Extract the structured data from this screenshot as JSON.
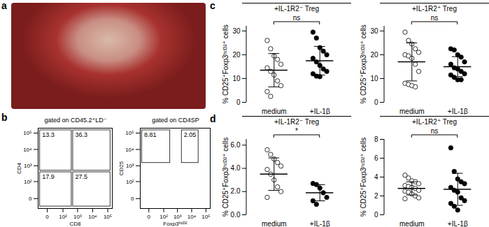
{
  "panel_labels": [
    "a",
    "b",
    "c",
    "d"
  ],
  "chart_data": [
    {
      "type": "flow",
      "title": "gated on CD45.2⁺LD⁻",
      "xlabel": "CD8",
      "ylabel": "CD4",
      "log": true,
      "xlim": [
        -30,
        200000
      ],
      "ylim": [
        -30,
        200000
      ],
      "xticks": [
        0,
        {
          "value": 100,
          "label": "10²"
        },
        {
          "value": 1000,
          "label": "10³"
        },
        {
          "value": 10000,
          "label": "10⁴"
        },
        {
          "value": 100000,
          "label": "10⁵"
        }
      ],
      "yticks": [
        0,
        {
          "value": 100,
          "label": "10²"
        },
        {
          "value": 1000,
          "label": "10³"
        },
        {
          "value": 10000,
          "label": "10⁴"
        },
        {
          "value": 100000,
          "label": "10⁵"
        }
      ],
      "gates": [
        {
          "value": 13.3,
          "x": [
            -20,
            400
          ],
          "y": [
            500,
            150000
          ]
        },
        {
          "value": 36.3,
          "x": [
            500,
            150000
          ],
          "y": [
            500,
            150000
          ]
        },
        {
          "value": 17.9,
          "x": [
            -20,
            400
          ],
          "y": [
            -20,
            400
          ]
        },
        {
          "value": 27.5,
          "x": [
            500,
            150000
          ],
          "y": [
            -20,
            400
          ]
        }
      ]
    },
    {
      "type": "flow",
      "title": "gated on CD4SP",
      "xlabel": "Foxp3ʰᶜᴰ²",
      "ylabel": "CD25",
      "log": true,
      "xlim": [
        -30,
        200000
      ],
      "ylim": [
        -30,
        200000
      ],
      "xticks": [
        0,
        {
          "value": 100,
          "label": "10²"
        },
        {
          "value": 1000,
          "label": "10³"
        },
        {
          "value": 10000,
          "label": "10⁴"
        },
        {
          "value": 100000,
          "label": "10⁵"
        }
      ],
      "yticks": [
        0,
        {
          "value": 100,
          "label": "10²"
        },
        {
          "value": 1000,
          "label": "10³"
        },
        {
          "value": 10000,
          "label": "10⁴"
        },
        {
          "value": 100000,
          "label": "10⁵"
        }
      ],
      "gates": [
        {
          "value": 8.81,
          "x": [
            -20,
            300
          ],
          "y": [
            1500,
            150000
          ]
        },
        {
          "value": 2.05,
          "x": [
            2000,
            30000
          ],
          "y": [
            1500,
            150000
          ]
        }
      ]
    },
    {
      "type": "dot",
      "title": "+IL-1R2⁻ Treg",
      "ylabel": "% CD25⁺Foxp3ʰᶜᴰ²⁺ cells",
      "categories": [
        "medium",
        "+IL-1β"
      ],
      "values": [
        [
          26,
          22.5,
          19.5,
          18,
          16,
          14.5,
          13,
          11.5,
          9,
          7,
          4.5,
          2.5
        ],
        [
          29.5,
          27,
          23,
          21.5,
          20,
          18.5,
          17,
          15.5,
          14,
          13,
          12,
          11,
          10.8
        ]
      ],
      "mean": [
        13.5,
        17.5
      ],
      "sd": [
        7,
        6
      ],
      "significance": "ns",
      "ylim": [
        0,
        32
      ],
      "yticks": [
        0,
        10,
        20,
        30
      ]
    },
    {
      "type": "dot",
      "title": "+IL-1R2⁺ Treg",
      "ylabel": "% CD25⁺Foxp3ʰᶜᴰ²⁺ cells",
      "categories": [
        "medium",
        "+IL-1β"
      ],
      "values": [
        [
          29.5,
          26,
          24.5,
          22.5,
          21,
          20,
          19.5,
          18.5,
          16,
          13,
          8,
          7.5,
          7,
          6.5
        ],
        [
          22.5,
          22,
          20,
          19,
          17,
          16,
          14.5,
          14,
          13,
          12,
          11.5,
          10.5,
          9.5,
          9.5
        ]
      ],
      "mean": [
        17,
        15
      ],
      "sd": [
        8,
        4.2
      ],
      "significance": "ns",
      "ylim": [
        0,
        32
      ],
      "yticks": [
        0,
        10,
        20,
        30
      ]
    },
    {
      "type": "dot",
      "title": "+IL-1R2⁻ Treg",
      "ylabel": "% CD25⁺Foxp3ʰᶜᴰ²⁺ cells",
      "categories": [
        "medium",
        "+IL-1β"
      ],
      "values": [
        [
          5.6,
          5.2,
          4.8,
          4.5,
          4.2,
          3.9,
          3.5,
          3.0,
          2.4,
          2.0,
          1.5
        ],
        [
          2.7,
          2.6,
          2.3,
          1.9,
          1.5,
          1.2,
          0.9
        ]
      ],
      "mean": [
        3.5,
        1.9
      ],
      "sd": [
        1.4,
        0.7
      ],
      "significance": "*",
      "ylim": [
        0,
        6.5
      ],
      "yticks": [
        0,
        2,
        4,
        6
      ]
    },
    {
      "type": "dot",
      "title": "+IL-1R2⁺ Treg",
      "ylabel": "% CD25⁺Foxp3ʰᶜᴰ²⁺ cells",
      "categories": [
        "medium",
        "+IL-1β"
      ],
      "values": [
        [
          4.2,
          3.9,
          3.6,
          3.5,
          3.3,
          3.1,
          3.0,
          2.9,
          2.8,
          2.6,
          2.5,
          2.4,
          2.2,
          2.0,
          1.8,
          1.7
        ],
        [
          7.1,
          4.6,
          3.8,
          3.5,
          3.3,
          2.9,
          2.6,
          2.4,
          1.8,
          1.5,
          1.2,
          0.9,
          0.5
        ]
      ],
      "mean": [
        2.8,
        2.7
      ],
      "sd": [
        0.7,
        1.7
      ],
      "significance": "ns",
      "ylim": [
        0,
        8
      ],
      "yticks": [
        0,
        2,
        4,
        6,
        8
      ]
    }
  ]
}
